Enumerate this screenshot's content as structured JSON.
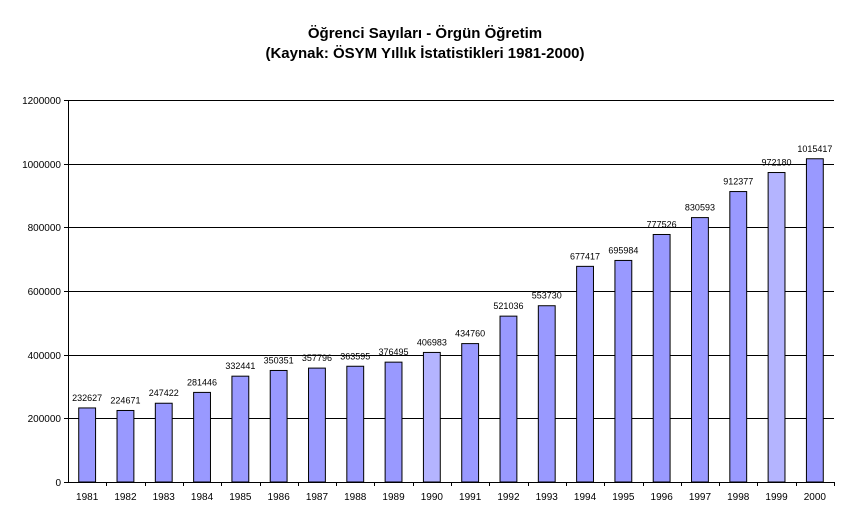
{
  "chart_data": {
    "type": "bar",
    "title": "Öğrenci Sayıları - Örgün Öğretim",
    "subtitle": "(Kaynak: ÖSYM Yıllık İstatistikleri 1981-2000)",
    "categories": [
      "1981",
      "1982",
      "1983",
      "1984",
      "1985",
      "1986",
      "1987",
      "1988",
      "1989",
      "1990",
      "1991",
      "1992",
      "1993",
      "1994",
      "1995",
      "1996",
      "1997",
      "1998",
      "1999",
      "2000"
    ],
    "values": [
      232627,
      224671,
      247422,
      281446,
      332441,
      350351,
      357796,
      363595,
      376495,
      406983,
      434760,
      521036,
      553730,
      677417,
      695984,
      777526,
      830593,
      912377,
      972180,
      1015417
    ],
    "y_tick_labels": [
      "0",
      "200000",
      "400000",
      "600000",
      "800000",
      "1000000",
      "1200000"
    ],
    "ylim": [
      0,
      1200000
    ],
    "bar_color": "#9999ff",
    "highlight_indices": [
      9,
      18
    ],
    "highlight_color": "#b4b4ff",
    "grid": true,
    "legend": "none"
  }
}
